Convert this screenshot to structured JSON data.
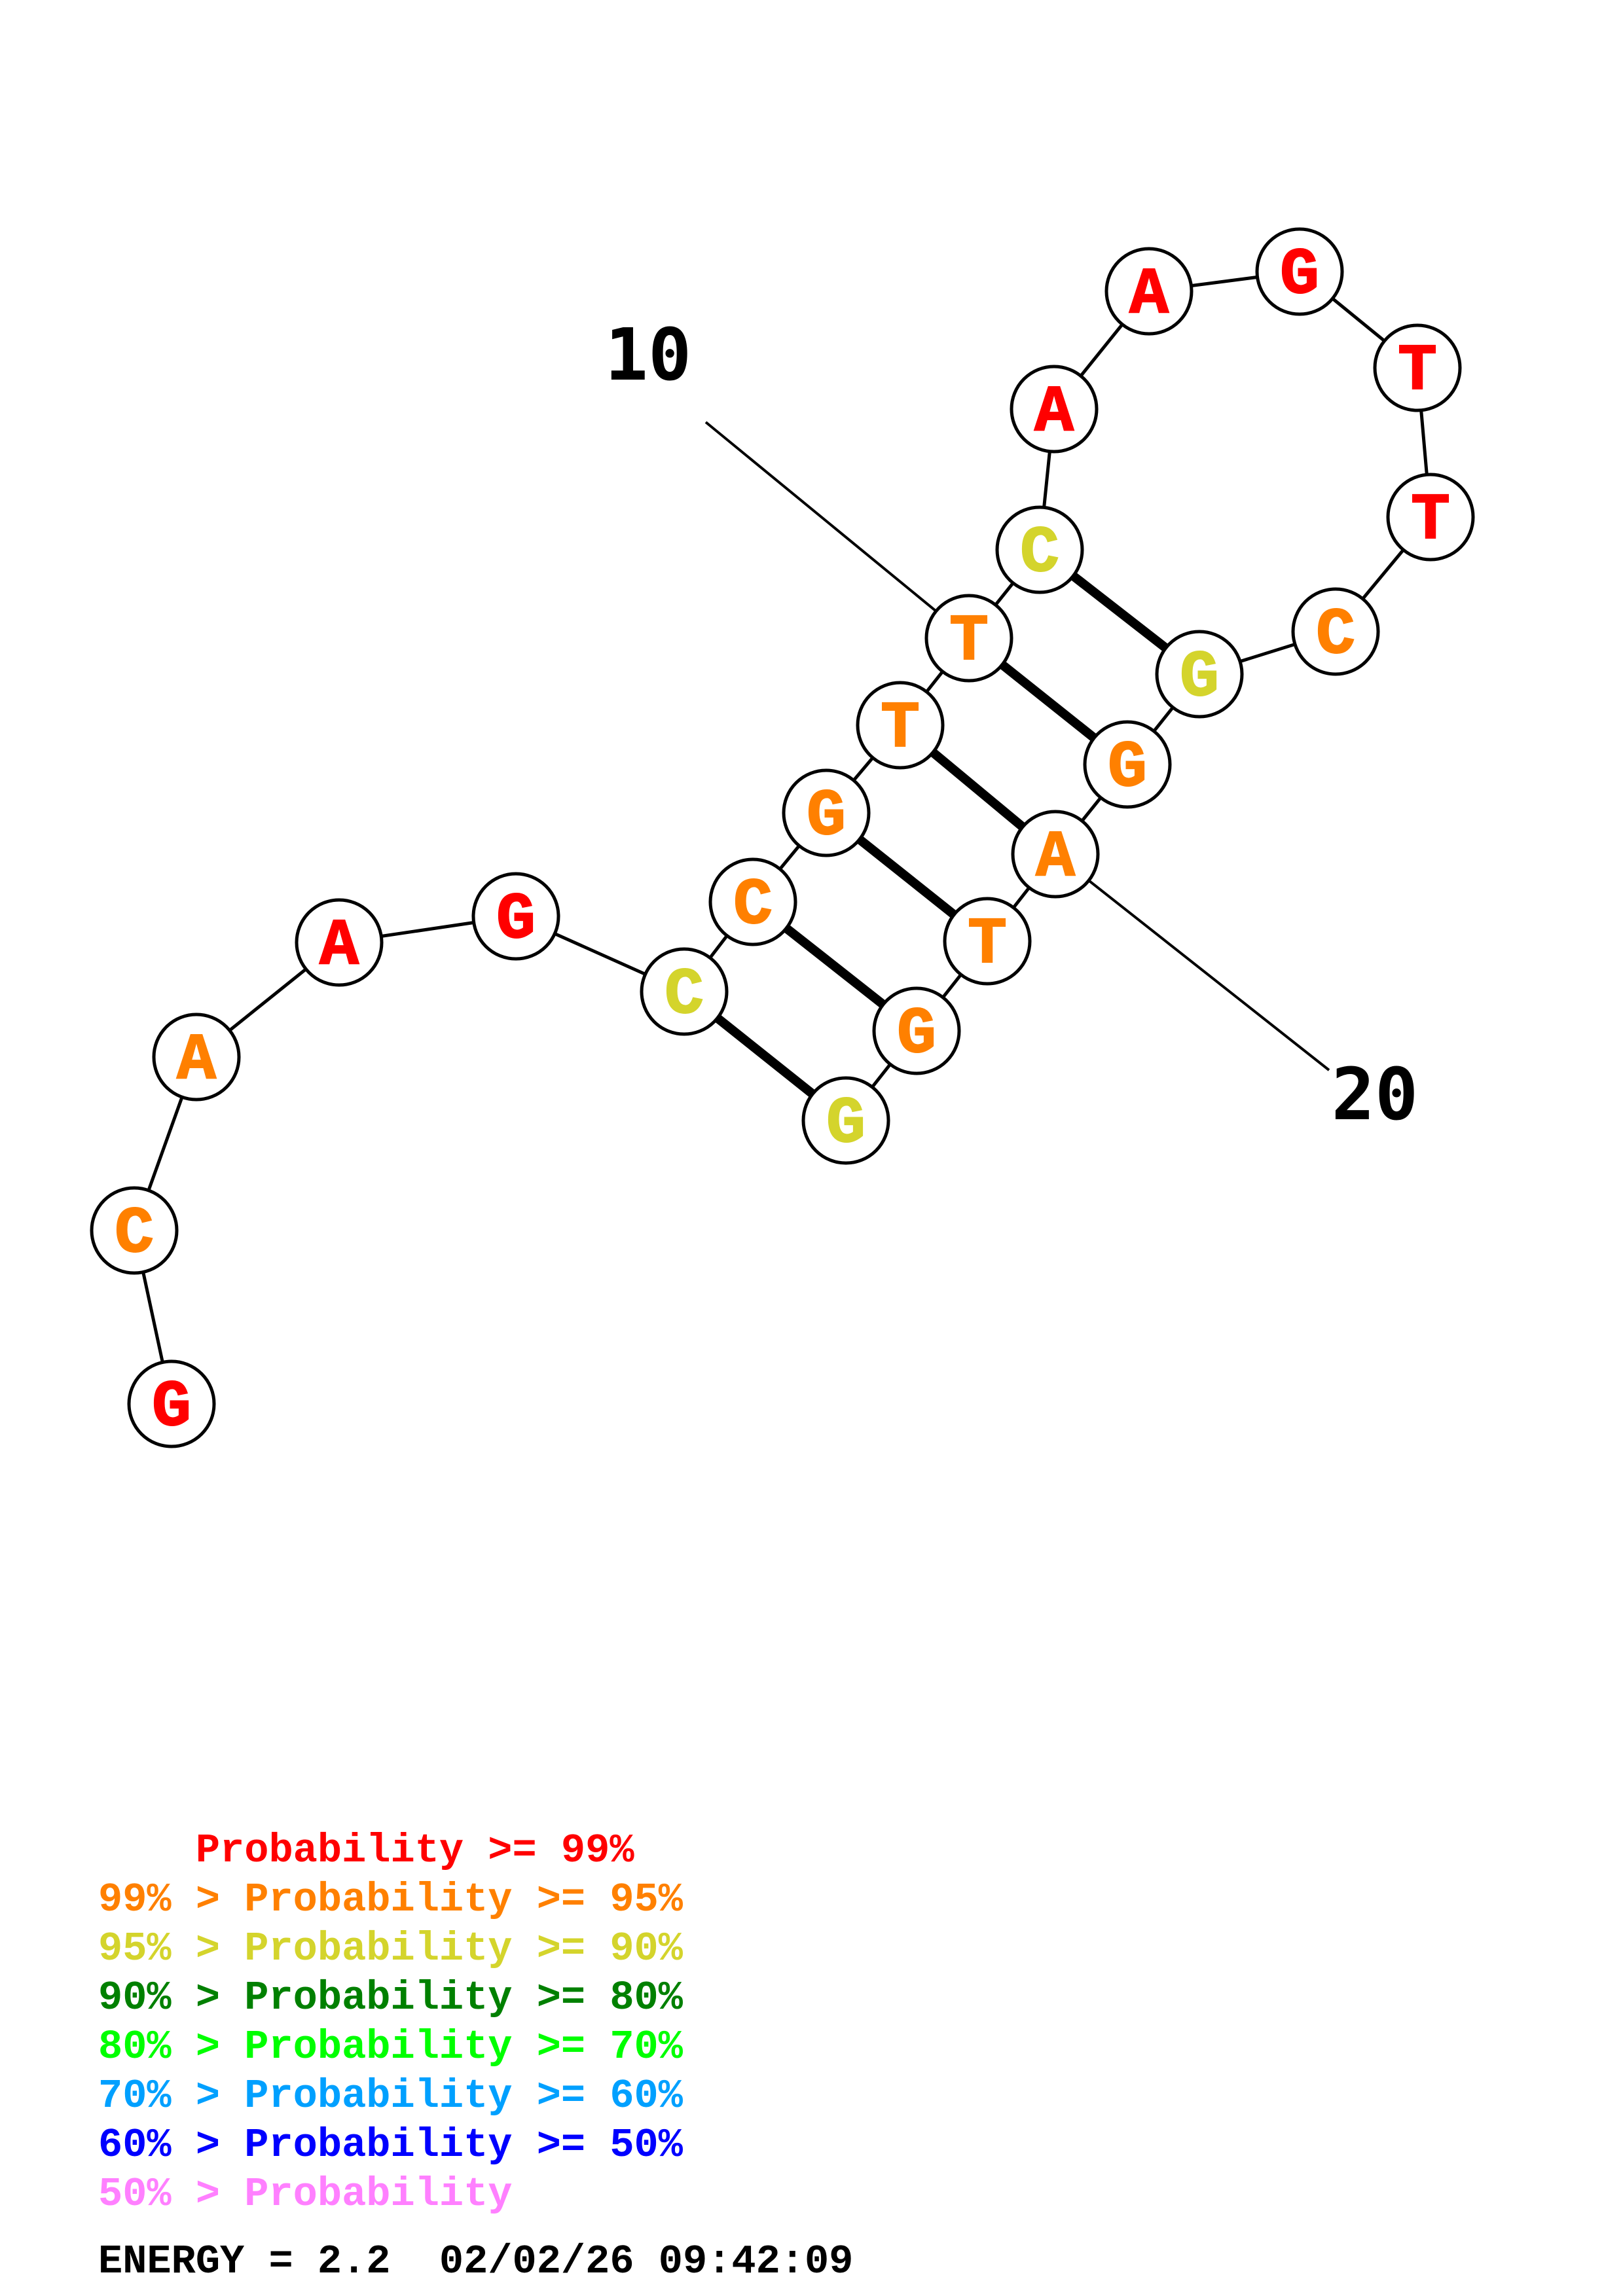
{
  "colors": {
    "p99": "#ff0000",
    "p95": "#ff8000",
    "p90": "#d4d42c",
    "p80": "#008000",
    "p70": "#00ff00",
    "p60": "#00a0ff",
    "p50": "#0000ff",
    "plow": "#ff80ff"
  },
  "structure": {
    "nucleotides": [
      {
        "index": 1,
        "base": "G",
        "prob": "p99"
      },
      {
        "index": 2,
        "base": "C",
        "prob": "p95"
      },
      {
        "index": 3,
        "base": "A",
        "prob": "p95"
      },
      {
        "index": 4,
        "base": "A",
        "prob": "p99"
      },
      {
        "index": 5,
        "base": "G",
        "prob": "p99"
      },
      {
        "index": 6,
        "base": "C",
        "prob": "p90"
      },
      {
        "index": 7,
        "base": "C",
        "prob": "p95"
      },
      {
        "index": 8,
        "base": "G",
        "prob": "p95"
      },
      {
        "index": 9,
        "base": "T",
        "prob": "p95"
      },
      {
        "index": 10,
        "base": "T",
        "prob": "p95"
      },
      {
        "index": 11,
        "base": "C",
        "prob": "p90"
      },
      {
        "index": 12,
        "base": "A",
        "prob": "p99"
      },
      {
        "index": 13,
        "base": "A",
        "prob": "p99"
      },
      {
        "index": 14,
        "base": "G",
        "prob": "p99"
      },
      {
        "index": 15,
        "base": "T",
        "prob": "p99"
      },
      {
        "index": 16,
        "base": "T",
        "prob": "p99"
      },
      {
        "index": 17,
        "base": "C",
        "prob": "p95"
      },
      {
        "index": 18,
        "base": "G",
        "prob": "p90"
      },
      {
        "index": 19,
        "base": "G",
        "prob": "p95"
      },
      {
        "index": 20,
        "base": "A",
        "prob": "p95"
      },
      {
        "index": 21,
        "base": "T",
        "prob": "p95"
      },
      {
        "index": 22,
        "base": "G",
        "prob": "p95"
      },
      {
        "index": 23,
        "base": "G",
        "prob": "p90"
      }
    ],
    "pairs": [
      [
        6,
        23
      ],
      [
        7,
        22
      ],
      [
        8,
        21
      ],
      [
        9,
        20
      ],
      [
        10,
        19
      ],
      [
        11,
        18
      ]
    ],
    "position_labels": [
      {
        "text": "10",
        "index": 10
      },
      {
        "text": "20",
        "index": 20
      }
    ]
  },
  "legend": [
    {
      "prefix": "    ",
      "body": "Probability >= 99%",
      "color": "p99"
    },
    {
      "prefix": "99% > ",
      "body": "Probability >= 95%",
      "color": "p95"
    },
    {
      "prefix": "95% > ",
      "body": "Probability >= 90%",
      "color": "p90"
    },
    {
      "prefix": "90% > ",
      "body": "Probability >= 80%",
      "color": "p80"
    },
    {
      "prefix": "80% > ",
      "body": "Probability >= 70%",
      "color": "p70"
    },
    {
      "prefix": "70% > ",
      "body": "Probability >= 60%",
      "color": "p60"
    },
    {
      "prefix": "60% > ",
      "body": "Probability >= 50%",
      "color": "p50"
    },
    {
      "prefix": "50% > ",
      "body": "Probability",
      "color": "plow"
    }
  ],
  "energy_line": "ENERGY = 2.2  02/02/26 09:42:09"
}
